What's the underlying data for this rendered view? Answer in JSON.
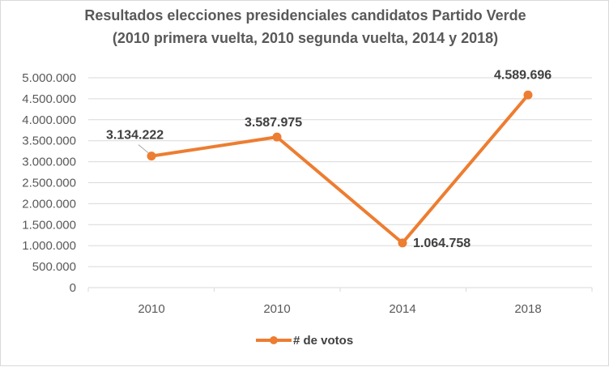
{
  "chart_data": {
    "type": "line",
    "title_lines": [
      "Resultados elecciones presidenciales candidatos Partido Verde",
      "(2010 primera vuelta, 2010 segunda  vuelta,  2014 y 2018)"
    ],
    "categories": [
      "2010",
      "2010",
      "2014",
      "2018"
    ],
    "series": [
      {
        "name": "# de votos",
        "values": [
          3134222,
          3587975,
          1064758,
          4589696
        ],
        "labels": [
          "3.134.222",
          "3.587.975",
          "1.064.758",
          "4.589.696"
        ],
        "color": "#ed7d31"
      }
    ],
    "ylim": [
      0,
      5000000
    ],
    "yticks": [
      0,
      500000,
      1000000,
      1500000,
      2000000,
      2500000,
      3000000,
      3500000,
      4000000,
      4500000,
      5000000
    ],
    "ytick_labels": [
      "0",
      "500.000",
      "1.000.000",
      "1.500.000",
      "2.000.000",
      "2.500.000",
      "3.000.000",
      "3.500.000",
      "4.000.000",
      "4.500.000",
      "5.000.000"
    ],
    "grid": true,
    "legend": "bottom-center",
    "xlabel": "",
    "ylabel": ""
  },
  "colors": {
    "series": "#ed7d31",
    "grid": "#d9d9d9",
    "text": "#595959",
    "label": "#404040"
  }
}
